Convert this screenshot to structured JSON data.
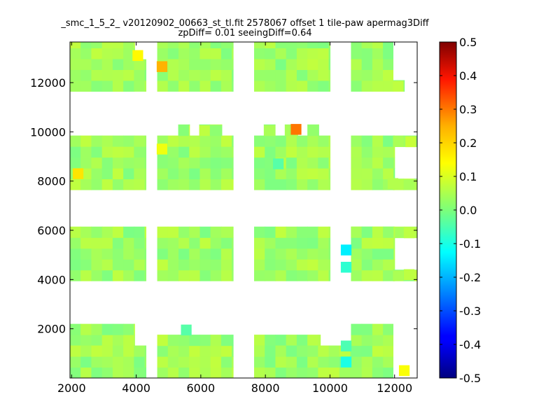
{
  "chart_data": {
    "type": "heatmap",
    "title": "_smc_1_5_2_ v20120902_00663_st_tl.fit 2578067 offset 1 tile-paw apermag3Diff",
    "subtitle": "zpDiff= 0.01 seeingDiff=0.64",
    "xlabel": "",
    "ylabel": "",
    "xlim": [
      1950,
      12700
    ],
    "ylim": [
      0,
      13650
    ],
    "x_ticks": [
      2000,
      4000,
      6000,
      8000,
      10000,
      12000
    ],
    "y_ticks": [
      2000,
      4000,
      6000,
      8000,
      10000,
      12000
    ],
    "colorbar": {
      "min": -0.5,
      "max": 0.5,
      "ticks": [
        -0.5,
        -0.4,
        -0.3,
        -0.2,
        -0.1,
        0.0,
        0.1,
        0.2,
        0.3,
        0.4,
        0.5
      ],
      "colormap": "jet"
    },
    "cell_size": [
      330,
      440
    ],
    "background_value": 0.03,
    "blocks": [
      {
        "x": [
          1950,
          3950
        ],
        "y": [
          0,
          2200
        ]
      },
      {
        "x": [
          1950,
          4300
        ],
        "y": [
          0,
          1320
        ]
      },
      {
        "x": [
          4650,
          7000
        ],
        "y": [
          0,
          1760
        ]
      },
      {
        "x": [
          7650,
          9700
        ],
        "y": [
          0,
          1760
        ]
      },
      {
        "x": [
          7650,
          10700
        ],
        "y": [
          0,
          1320
        ]
      },
      {
        "x": [
          10650,
          11950
        ],
        "y": [
          0,
          2200
        ]
      },
      {
        "x": [
          1950,
          4300
        ],
        "y": [
          3950,
          6150
        ]
      },
      {
        "x": [
          4650,
          7000
        ],
        "y": [
          3950,
          6150
        ]
      },
      {
        "x": [
          7650,
          10000
        ],
        "y": [
          3950,
          6150
        ]
      },
      {
        "x": [
          10650,
          12700
        ],
        "y": [
          5700,
          6150
        ]
      },
      {
        "x": [
          10650,
          12000
        ],
        "y": [
          3950,
          6150
        ]
      },
      {
        "x": [
          11950,
          12700
        ],
        "y": [
          3950,
          4400
        ]
      },
      {
        "x": [
          1950,
          4300
        ],
        "y": [
          7650,
          9850
        ]
      },
      {
        "x": [
          4650,
          7000
        ],
        "y": [
          7650,
          9850
        ]
      },
      {
        "x": [
          7650,
          10000
        ],
        "y": [
          7650,
          9850
        ]
      },
      {
        "x": [
          10650,
          12000
        ],
        "y": [
          7650,
          9850
        ]
      },
      {
        "x": [
          11950,
          12700
        ],
        "y": [
          9400,
          9850
        ]
      },
      {
        "x": [
          11950,
          12700
        ],
        "y": [
          7650,
          8100
        ]
      },
      {
        "x": [
          5300,
          5650
        ],
        "y": [
          9850,
          10300
        ]
      },
      {
        "x": [
          5950,
          6650
        ],
        "y": [
          9850,
          10300
        ]
      },
      {
        "x": [
          7950,
          8300
        ],
        "y": [
          9850,
          10300
        ]
      },
      {
        "x": [
          8600,
          9000
        ],
        "y": [
          9850,
          10300
        ]
      },
      {
        "x": [
          9300,
          9650
        ],
        "y": [
          9850,
          10300
        ]
      },
      {
        "x": [
          1950,
          3950
        ],
        "y": [
          11650,
          13650
        ]
      },
      {
        "x": [
          1950,
          4300
        ],
        "y": [
          11650,
          12950
        ]
      },
      {
        "x": [
          4650,
          7000
        ],
        "y": [
          11650,
          13650
        ]
      },
      {
        "x": [
          7650,
          10000
        ],
        "y": [
          11650,
          13650
        ]
      },
      {
        "x": [
          10650,
          11950
        ],
        "y": [
          11650,
          13650
        ]
      },
      {
        "x": [
          11950,
          12300
        ],
        "y": [
          11650,
          12100
        ]
      }
    ],
    "notable_cells": [
      {
        "x": 2200,
        "y": 8300,
        "value": 0.15
      },
      {
        "x": 4050,
        "y": 13100,
        "value": 0.13
      },
      {
        "x": 4800,
        "y": 12650,
        "value": 0.2
      },
      {
        "x": 4800,
        "y": 9300,
        "value": 0.11
      },
      {
        "x": 8950,
        "y": 10100,
        "value": 0.26
      },
      {
        "x": 10500,
        "y": 5200,
        "value": -0.14
      },
      {
        "x": 10500,
        "y": 4500,
        "value": -0.08
      },
      {
        "x": 10500,
        "y": 650,
        "value": -0.1
      },
      {
        "x": 10500,
        "y": 1300,
        "value": -0.05
      },
      {
        "x": 12300,
        "y": 300,
        "value": 0.12
      },
      {
        "x": 12500,
        "y": 9600,
        "value": 0.07
      },
      {
        "x": 12450,
        "y": 5900,
        "value": 0.06
      },
      {
        "x": 12450,
        "y": 4200,
        "value": 0.06
      },
      {
        "x": 11950,
        "y": 7900,
        "value": 0.05
      },
      {
        "x": 8400,
        "y": 8700,
        "value": -0.04
      },
      {
        "x": 5550,
        "y": 1950,
        "value": -0.04
      }
    ]
  }
}
